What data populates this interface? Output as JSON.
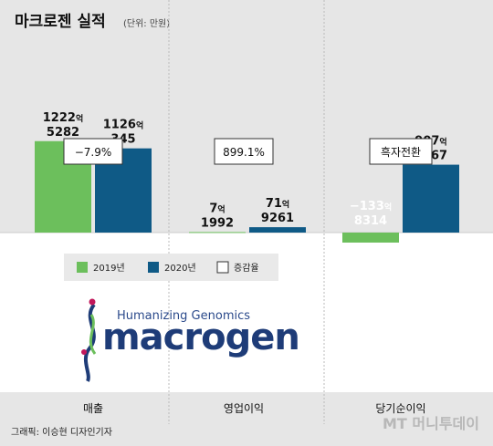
{
  "header": {
    "title": "마크로젠 실적",
    "unit": "(단위: 만원)"
  },
  "chart_data": {
    "type": "bar",
    "categories": [
      "매출",
      "영업이익",
      "당기순이익"
    ],
    "value_unit": "만원",
    "series": [
      {
        "name": "2019년",
        "color": "#6cbf5c",
        "values": [
          12225282,
          71992,
          -1338314
        ],
        "labels": [
          {
            "top": "1222",
            "suffix": "억",
            "bottom": "5282"
          },
          {
            "top": "7",
            "suffix": "억",
            "bottom": "1992"
          },
          {
            "top": "−133",
            "suffix": "억",
            "bottom": "8314"
          }
        ]
      },
      {
        "name": "2020년",
        "color": "#0f5a86",
        "values": [
          11260345,
          719261,
          9075767
        ],
        "labels": [
          {
            "top": "1126",
            "suffix": "억",
            "bottom": "345"
          },
          {
            "top": "71",
            "suffix": "억",
            "bottom": "9261"
          },
          {
            "top": "907",
            "suffix": "억",
            "bottom": "5767"
          }
        ]
      }
    ],
    "change": {
      "name": "증감율",
      "labels": [
        "−7.9%",
        "899.1%",
        "흑자전환"
      ]
    },
    "legend_position": "lower-left inside"
  },
  "logo": {
    "tagline": "Humanizing Genomics",
    "wordmark": "macrogen"
  },
  "credit": "그래픽: 이승현 디자인기자",
  "watermark": "MT 머니투데이"
}
